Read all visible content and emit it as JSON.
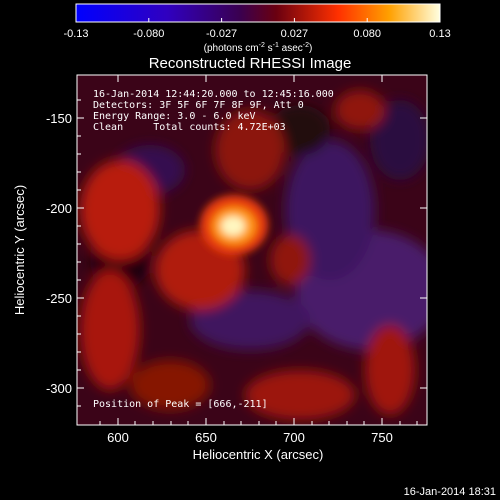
{
  "colorbar": {
    "ticks": [
      "-0.13",
      "-0.080",
      "-0.027",
      "0.027",
      "0.080",
      "0.13"
    ],
    "units_prefix": "(photons cm",
    "units_exp1": "-2",
    "units_mid": " s",
    "units_exp2": "-1",
    "units_mid2": " asec",
    "units_exp3": "-2",
    "units_suffix": ")"
  },
  "title": "Reconstructed RHESSI Image",
  "annotations": [
    "16-Jan-2014 12:44:20.000 to 12:45:16.000",
    "Detectors: 3F 5F 6F 7F 8F 9F, Att 0",
    "Energy Range: 3.0 - 6.0 keV",
    "Clean     Total counts: 4.72E+03"
  ],
  "peak_label": "Position of Peak = [666,-211]",
  "xaxis": {
    "label": "Heliocentric X (arcsec)",
    "ticks": [
      "600",
      "650",
      "700",
      "750"
    ]
  },
  "yaxis": {
    "label": "Heliocentric Y (arcsec)",
    "ticks": [
      "-150",
      "-200",
      "-250",
      "-300"
    ]
  },
  "footer_timestamp": "16-Jan-2014 18:31"
}
